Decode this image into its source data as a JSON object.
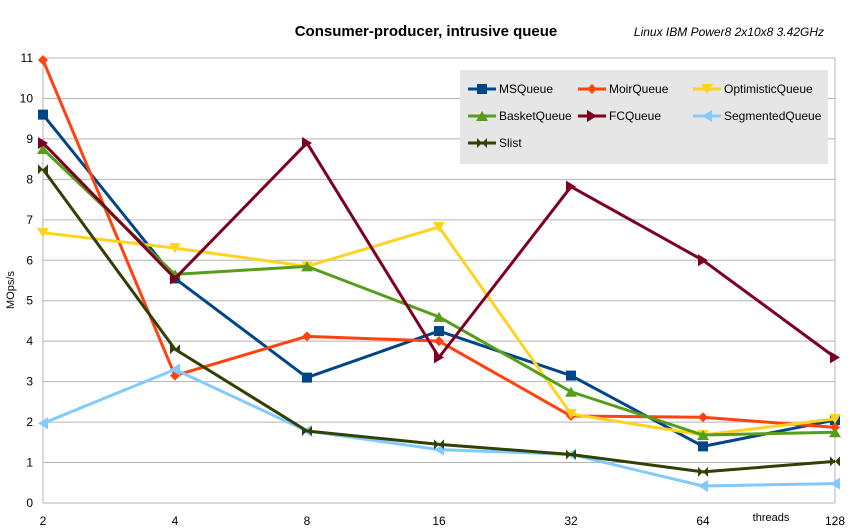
{
  "chart_data": {
    "type": "line",
    "title": "Consumer-producer, intrusive queue",
    "subtitle": "Linux IBM Power8 2x10x8 3.42GHz",
    "xlabel": "threads",
    "ylabel": "MOps/s",
    "x_scale": "log2",
    "categories": [
      "2",
      "4",
      "8",
      "16",
      "32",
      "64",
      "128"
    ],
    "x": [
      2,
      4,
      8,
      16,
      32,
      64,
      128
    ],
    "ylim": [
      0,
      11
    ],
    "yticks": [
      "0",
      "1",
      "2",
      "3",
      "4",
      "5",
      "6",
      "7",
      "8",
      "9",
      "10",
      "11"
    ],
    "grid": "horizontal",
    "legend_position": "top-right",
    "series": [
      {
        "name": "MSQueue",
        "color": "#004586",
        "marker": "square",
        "values": [
          9.6,
          5.55,
          3.1,
          4.25,
          3.15,
          1.4,
          2.05
        ]
      },
      {
        "name": "MoirQueue",
        "color": "#ff420e",
        "marker": "diamond",
        "values": [
          10.95,
          3.15,
          4.12,
          4.0,
          2.15,
          2.12,
          1.87
        ]
      },
      {
        "name": "OptimisticQueue",
        "color": "#ffd320",
        "marker": "triangle-down",
        "values": [
          6.68,
          6.3,
          5.85,
          6.82,
          2.2,
          1.68,
          2.08
        ]
      },
      {
        "name": "BasketQueue",
        "color": "#579d1c",
        "marker": "triangle-up",
        "values": [
          8.75,
          5.65,
          5.85,
          4.6,
          2.75,
          1.68,
          1.75
        ]
      },
      {
        "name": "FCQueue",
        "color": "#7e0021",
        "marker": "triangle-right",
        "values": [
          8.9,
          5.55,
          8.9,
          3.6,
          7.82,
          6.0,
          3.6
        ]
      },
      {
        "name": "SegmentedQueue",
        "color": "#83caff",
        "marker": "triangle-left",
        "values": [
          1.97,
          3.3,
          1.78,
          1.32,
          1.2,
          0.42,
          0.48
        ]
      },
      {
        "name": "Slist",
        "color": "#314004",
        "marker": "bowtie",
        "values": [
          8.25,
          3.8,
          1.78,
          1.45,
          1.2,
          0.77,
          1.03
        ]
      }
    ]
  }
}
